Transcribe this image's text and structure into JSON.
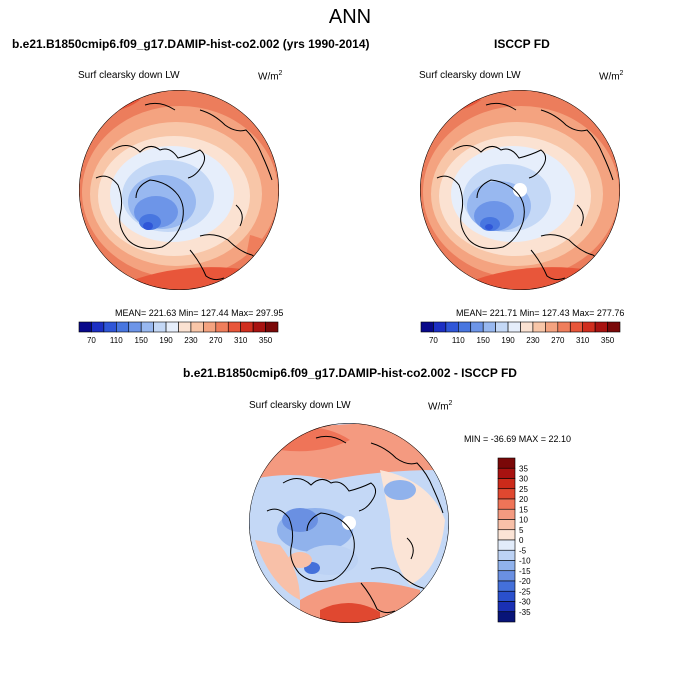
{
  "title": "ANN",
  "panels": [
    {
      "header": "b.e21.B1850cmip6.f09_g17.DAMIP-hist-co2.002 (yrs 1990-2014)",
      "variable": "Surf clearsky down LW",
      "units_base": "W/m",
      "units_exp": "2",
      "stats": "MEAN= 221.63  Min= 127.44  Max= 297.95"
    },
    {
      "header": "ISCCP FD",
      "variable": "Surf clearsky down LW",
      "units_base": "W/m",
      "units_exp": "2",
      "stats": "MEAN= 221.71  Min= 127.43  Max= 277.76"
    },
    {
      "header": "b.e21.B1850cmip6.f09_g17.DAMIP-hist-co2.002 - ISCCP FD",
      "variable": "Surf clearsky down LW",
      "units_base": "W/m",
      "units_exp": "2",
      "stats": "MIN = -36.69 MAX =  22.10"
    }
  ],
  "colorbar_main": {
    "colors": [
      "#08088a",
      "#1c2fc4",
      "#2f56d8",
      "#4876e0",
      "#6d95e8",
      "#98b8f0",
      "#c4d8f6",
      "#e6eefb",
      "#fbe2d2",
      "#f8c6a8",
      "#f4a380",
      "#ef7e5c",
      "#e8563a",
      "#d02e1e",
      "#a81210",
      "#7a0808"
    ],
    "labels": [
      "70",
      "110",
      "150",
      "190",
      "230",
      "270",
      "310",
      "350"
    ]
  },
  "colorbar_diff": {
    "colors": [
      "#7a0808",
      "#a81210",
      "#cc2a1a",
      "#e04830",
      "#ef7458",
      "#f49a80",
      "#f8c0a8",
      "#fbe4d6",
      "#e2ecfa",
      "#bcd2f4",
      "#90b2ec",
      "#6a90e2",
      "#4470da",
      "#2a50cc",
      "#1a30b4",
      "#081478"
    ],
    "labels": [
      "35",
      "30",
      "25",
      "20",
      "15",
      "10",
      "5",
      "0",
      "-5",
      "-10",
      "-15",
      "-20",
      "-25",
      "-30",
      "-35"
    ]
  }
}
